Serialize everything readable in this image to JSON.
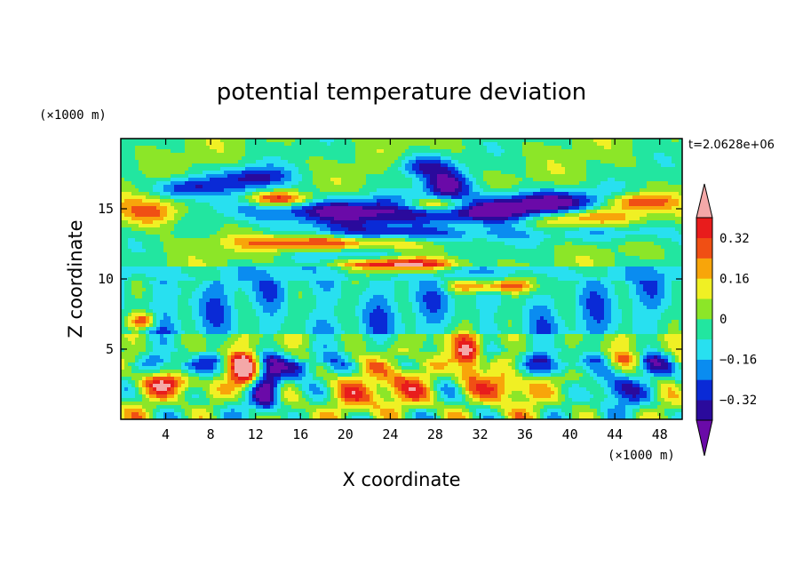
{
  "chart_data": {
    "type": "heatmap",
    "title": "potential temperature deviation",
    "xlabel": "X coordinate",
    "ylabel": "Z coordinate",
    "x_unit": "(×1000 m)",
    "y_unit": "(×1000 m)",
    "time_label": "t=2.0628e+06",
    "xlim": [
      0,
      50
    ],
    "ylim": [
      0,
      20
    ],
    "x_ticks": [
      4,
      8,
      12,
      16,
      20,
      24,
      28,
      32,
      36,
      40,
      44,
      48
    ],
    "y_ticks": [
      5,
      10,
      15
    ],
    "x_tick_labels": [
      "4",
      "8",
      "12",
      "16",
      "20",
      "24",
      "28",
      "32",
      "36",
      "40",
      "44",
      "48"
    ],
    "y_tick_labels": [
      "5",
      "10",
      "15"
    ],
    "colorbar": {
      "levels": [
        -0.4,
        -0.32,
        -0.24,
        -0.16,
        -0.08,
        0,
        0.08,
        0.16,
        0.24,
        0.32,
        0.4
      ],
      "tick_values": [
        0.32,
        0.16,
        0,
        -0.16,
        -0.32
      ],
      "tick_labels": [
        "0.32",
        "0.16",
        "0",
        "−0.16",
        "−0.32"
      ],
      "colors": [
        "#6a0aa8",
        "#2a0a9c",
        "#0a2ad6",
        "#0a8cf0",
        "#28e0f0",
        "#22e6a0",
        "#8ce628",
        "#f0f024",
        "#f8a50a",
        "#f04f14",
        "#e81c1c",
        "#f4a8a8"
      ],
      "extend": "both"
    },
    "grid": false,
    "legend_position": "right"
  }
}
